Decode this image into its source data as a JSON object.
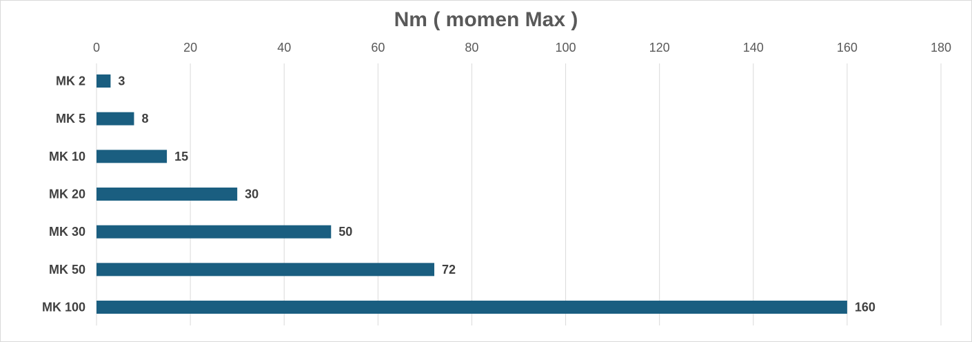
{
  "chart_data": {
    "type": "bar",
    "orientation": "horizontal",
    "title": "Nm ( momen Max )",
    "categories": [
      "MK 2",
      "MK 5",
      "MK 10",
      "MK 20",
      "MK 30",
      "MK 50",
      "MK 100"
    ],
    "values": [
      3,
      8,
      15,
      30,
      50,
      72,
      160
    ],
    "x_ticks": [
      0,
      20,
      40,
      60,
      80,
      100,
      120,
      140,
      160,
      180
    ],
    "xlim": [
      0,
      180
    ],
    "x_axis_position": "top",
    "grid": true,
    "legend": "none",
    "data_labels": true,
    "colors": {
      "bar": "#1a5e80",
      "grid": "#d9d9d9",
      "title": "#595959",
      "tick": "#595959",
      "label": "#404040"
    }
  }
}
